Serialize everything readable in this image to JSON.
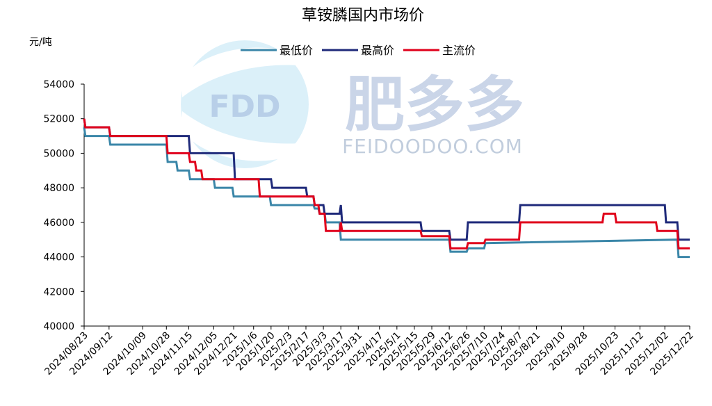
{
  "chart_data": {
    "type": "line",
    "title": "草铵膦国内市场价",
    "ylabel": "元/吨",
    "ylim": [
      40000,
      54000
    ],
    "yticks": [
      40000,
      42000,
      44000,
      46000,
      48000,
      50000,
      52000,
      54000
    ],
    "xticks": [
      "2024/08/23",
      "2024/09/12",
      "2024/10/09",
      "2024/10/28",
      "2024/11/15",
      "2024/12/05",
      "2024/12/21",
      "2025/1/6",
      "2025/1/20",
      "2025/2/3",
      "2025/2/17",
      "2025/3/3",
      "2025/3/17",
      "2025/3/31",
      "2025/4/17",
      "2025/5/1",
      "2025/5/15",
      "2025/5/29",
      "2025/6/12",
      "2025/6/26",
      "2025/7/10",
      "2025/7/24",
      "2025/8/7",
      "2025/8/21",
      "2025/9/10",
      "2025/9/28",
      "2025/10/23",
      "2025/11/12",
      "2025/12/02",
      "2025/12/22"
    ],
    "legend_position": "top-center",
    "series": [
      {
        "name": "最低价",
        "color": "#3a86a8",
        "x": [
          "2024/08/23",
          "2024/08/24",
          "2024/09/12",
          "2024/09/13",
          "2024/10/28",
          "2024/10/29",
          "2024/11/05",
          "2024/11/06",
          "2024/11/15",
          "2024/11/16",
          "2024/12/05",
          "2024/12/06",
          "2024/12/20",
          "2024/12/21",
          "2025/1/19",
          "2025/1/20",
          "2025/2/23",
          "2025/2/24",
          "2025/2/27",
          "2025/2/28",
          "2025/3/4",
          "2025/3/5",
          "2025/3/16",
          "2025/3/17",
          "2025/3/18",
          "2025/6/12",
          "2025/6/13",
          "2025/6/26",
          "2025/6/27",
          "2025/7/10",
          "2025/7/11",
          "2025/12/12",
          "2025/12/13",
          "2025/12/22"
        ],
        "y": [
          51500,
          51000,
          51000,
          50500,
          50500,
          49500,
          49500,
          49000,
          49000,
          48500,
          48500,
          48000,
          48000,
          47500,
          47500,
          47000,
          47000,
          46800,
          46800,
          46500,
          46500,
          46000,
          46000,
          45000,
          45000,
          45000,
          44300,
          44300,
          44500,
          44500,
          44800,
          45000,
          44000,
          44000
        ]
      },
      {
        "name": "最高价",
        "color": "#1f2a7a",
        "x": [
          "2024/08/23",
          "2024/08/24",
          "2024/09/12",
          "2024/09/13",
          "2024/11/15",
          "2024/11/16",
          "2024/12/21",
          "2024/12/22",
          "2025/1/20",
          "2025/1/21",
          "2025/2/17",
          "2025/2/18",
          "2025/2/23",
          "2025/2/24",
          "2025/3/3",
          "2025/3/4",
          "2025/3/16",
          "2025/3/17",
          "2025/3/18",
          "2025/5/20",
          "2025/5/21",
          "2025/6/12",
          "2025/6/13",
          "2025/6/26",
          "2025/6/27",
          "2025/8/7",
          "2025/8/8",
          "2025/12/02",
          "2025/12/03",
          "2025/12/12",
          "2025/12/13",
          "2025/12/22"
        ],
        "y": [
          52000,
          51500,
          51500,
          51000,
          51000,
          50000,
          50000,
          48500,
          48500,
          48000,
          48000,
          47500,
          47500,
          47000,
          47000,
          46500,
          46500,
          47000,
          46000,
          46000,
          45500,
          45500,
          45000,
          45000,
          46000,
          46000,
          47000,
          47000,
          46000,
          46000,
          45000,
          45000
        ]
      },
      {
        "name": "主流价",
        "color": "#e0001b",
        "x": [
          "2024/08/23",
          "2024/08/24",
          "2024/09/12",
          "2024/09/13",
          "2024/10/28",
          "2024/10/29",
          "2024/11/15",
          "2024/11/16",
          "2024/11/20",
          "2024/11/21",
          "2024/11/25",
          "2024/11/26",
          "2024/12/21",
          "2024/12/22",
          "2025/1/10",
          "2025/1/11",
          "2025/2/23",
          "2025/2/24",
          "2025/2/27",
          "2025/2/28",
          "2025/3/4",
          "2025/3/5",
          "2025/3/16",
          "2025/3/17",
          "2025/3/18",
          "2025/5/20",
          "2025/5/21",
          "2025/6/12",
          "2025/6/13",
          "2025/6/26",
          "2025/6/27",
          "2025/7/10",
          "2025/7/11",
          "2025/8/7",
          "2025/8/8",
          "2025/10/13",
          "2025/10/14",
          "2025/10/23",
          "2025/10/24",
          "2025/11/25",
          "2025/11/26",
          "2025/12/12",
          "2025/12/13",
          "2025/12/22"
        ],
        "y": [
          52000,
          51500,
          51500,
          51000,
          51000,
          50000,
          50000,
          49500,
          49500,
          49000,
          49000,
          48500,
          48500,
          48500,
          48500,
          47500,
          47500,
          47000,
          47000,
          46500,
          46500,
          45500,
          45500,
          46000,
          45500,
          45500,
          45200,
          45200,
          44500,
          44500,
          44800,
          44800,
          45000,
          45000,
          46000,
          46000,
          46500,
          46500,
          46000,
          46000,
          45500,
          45500,
          44500,
          44500
        ]
      }
    ]
  },
  "watermark": {
    "logo_text": "FDD",
    "brand_text": "肥多多",
    "domain_text": "FEIDOODOO.COM"
  }
}
